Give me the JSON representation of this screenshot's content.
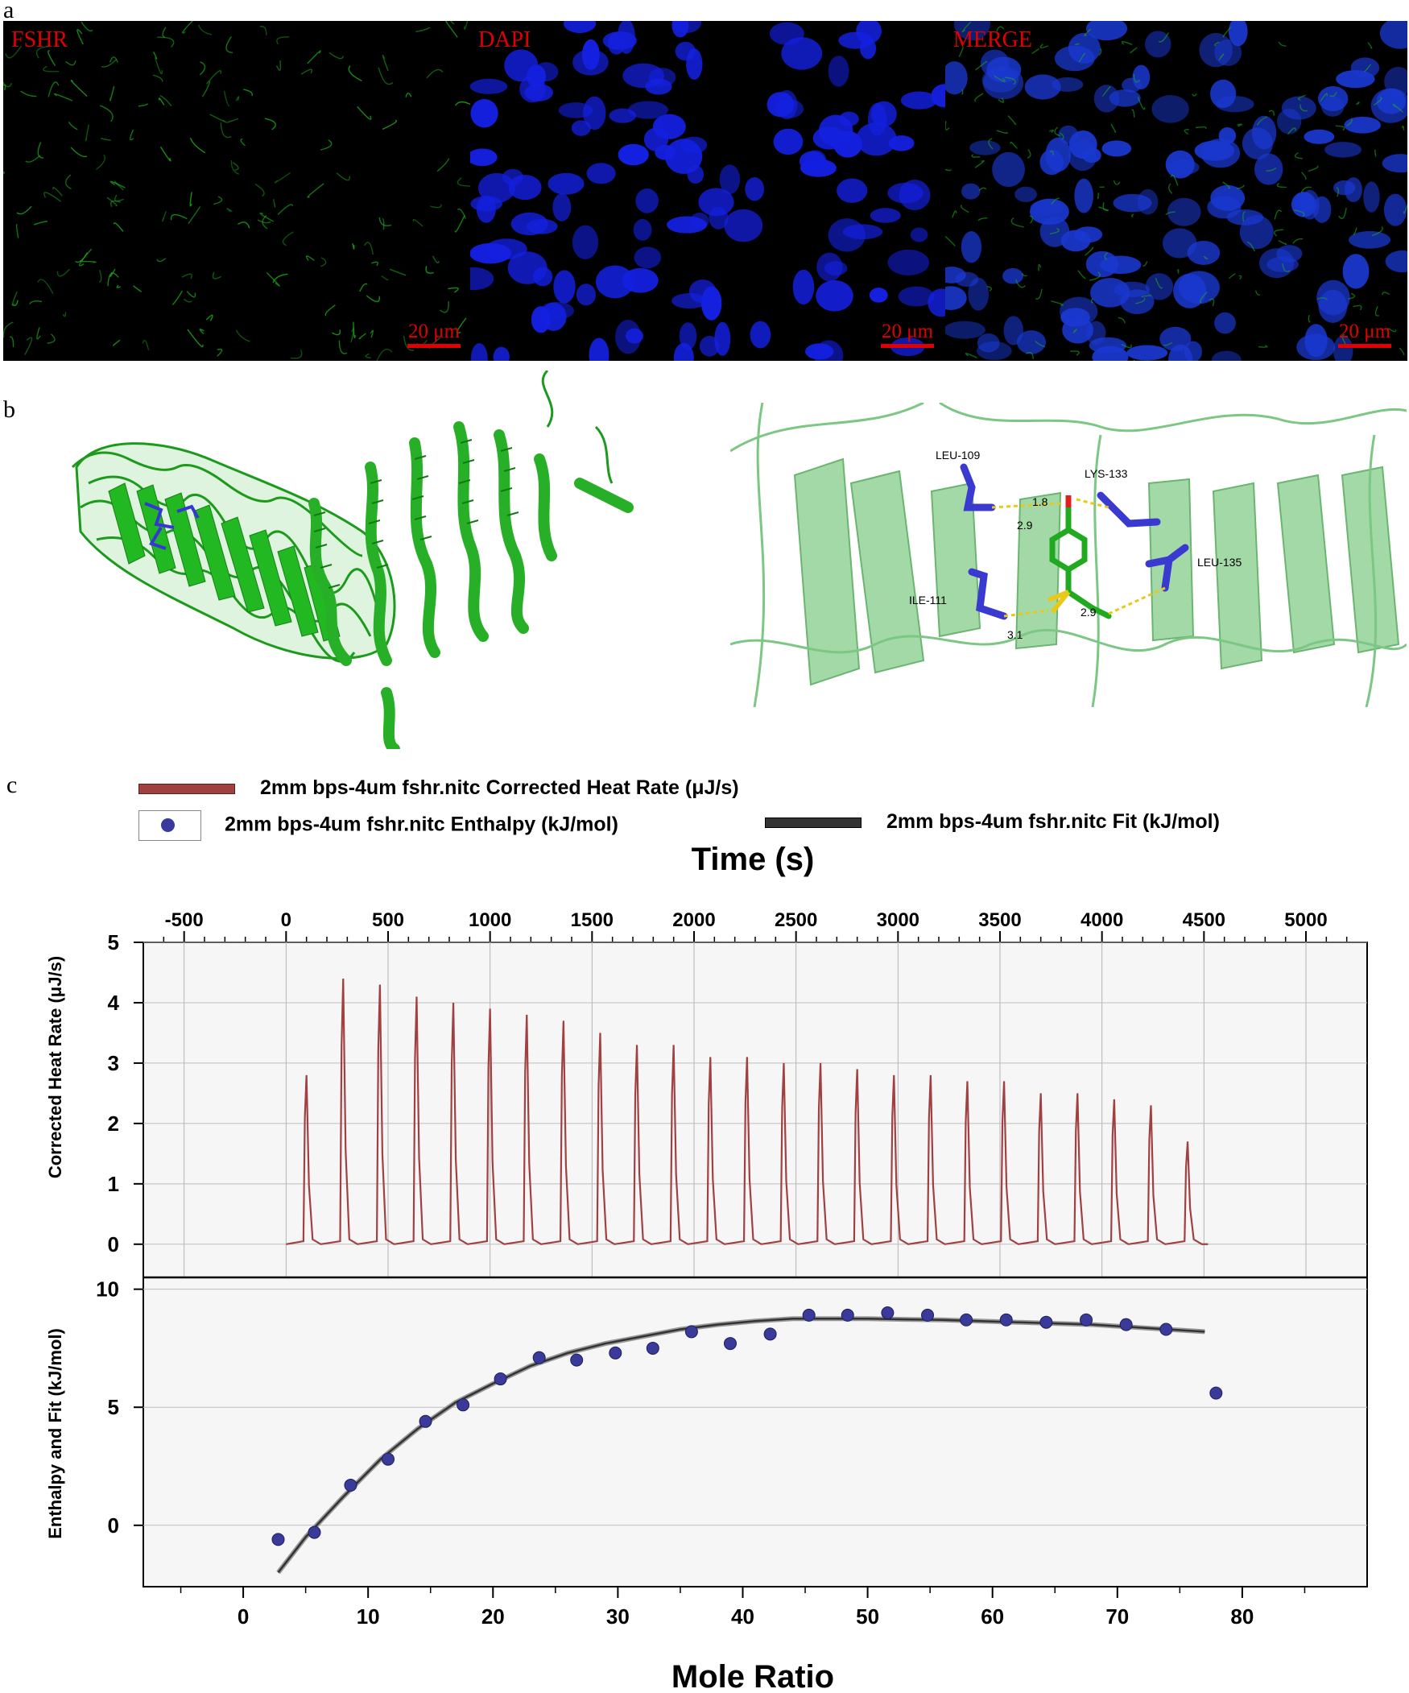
{
  "panels": {
    "a": {
      "letter": "a",
      "images": [
        {
          "label": "FSHR",
          "scale_bar": "20 μm",
          "stain_color": "#1ca81c"
        },
        {
          "label": "DAPI",
          "scale_bar": "20 μm",
          "stain_color": "#1420e0"
        },
        {
          "label": "MERGE",
          "scale_bar": "20 μm",
          "stain_color": "#1a38d0"
        }
      ]
    },
    "b": {
      "letter": "b",
      "residues": [
        {
          "name": "LEU-109"
        },
        {
          "name": "LYS-133"
        },
        {
          "name": "LEU-135"
        },
        {
          "name": "ILE-111"
        }
      ],
      "distances": [
        "1.8",
        "2.9",
        "2.9",
        "3.1"
      ],
      "colors": {
        "ribbon": "#20b020",
        "ribbon_light": "#7fcf85",
        "residue": "#3a3ad0",
        "ligand": "#1faa1f",
        "hbond": "#e8c81a"
      }
    },
    "c": {
      "letter": "c"
    }
  },
  "chart_data": [
    {
      "type": "line",
      "title": "",
      "top_axis_label": "Time (s)",
      "xlim": [
        -700,
        5300
      ],
      "xticks": [
        -500,
        0,
        500,
        1000,
        1500,
        2000,
        2500,
        3000,
        3500,
        4000,
        4500,
        5000
      ],
      "ylabel": "Corrected Heat Rate (μJ/s)",
      "ylim": [
        -0.55,
        5.0
      ],
      "yticks": [
        0,
        1,
        2,
        3,
        4,
        5
      ],
      "grid": true,
      "series": [
        {
          "name": "2mm bps-4um fshr.nitc Corrected Heat Rate (μJ/s)",
          "color": "#a04040",
          "injection_times": [
            90,
            270,
            450,
            630,
            810,
            990,
            1170,
            1350,
            1530,
            1710,
            1890,
            2070,
            2250,
            2430,
            2610,
            2790,
            2970,
            3150,
            3330,
            3510,
            3690,
            3870,
            4050,
            4230,
            4410
          ],
          "peak_heights": [
            2.8,
            4.4,
            4.3,
            4.1,
            4.0,
            3.9,
            3.8,
            3.7,
            3.5,
            3.3,
            3.3,
            3.1,
            3.1,
            3.0,
            3.0,
            2.9,
            2.8,
            2.8,
            2.7,
            2.7,
            2.5,
            2.5,
            2.4,
            2.3,
            1.7
          ],
          "baseline": 0,
          "end_time": 4520
        }
      ]
    },
    {
      "type": "scatter",
      "title": "",
      "xlabel": "Mole Ratio",
      "xlim": [
        -8,
        90
      ],
      "xticks": [
        0,
        10,
        20,
        30,
        40,
        50,
        60,
        70,
        80
      ],
      "ylabel": "Enthalpy and Fit (kJ/mol)",
      "ylim": [
        -2.6,
        10.5
      ],
      "yticks": [
        0,
        5,
        10
      ],
      "grid": true,
      "series": [
        {
          "name": "2mm bps-4um fshr.nitc Enthalpy (kJ/mol)",
          "color": "#3a3a9a",
          "x": [
            2.8,
            5.7,
            8.6,
            11.6,
            14.6,
            17.6,
            20.6,
            23.7,
            26.7,
            29.8,
            32.8,
            35.9,
            39.0,
            42.2,
            45.3,
            48.4,
            51.6,
            54.8,
            57.9,
            61.1,
            64.3,
            67.5,
            70.7,
            73.9,
            77.9
          ],
          "y": [
            -0.6,
            -0.3,
            1.7,
            2.8,
            4.4,
            5.1,
            6.2,
            7.1,
            7.0,
            7.3,
            7.5,
            8.2,
            7.7,
            8.1,
            8.9,
            8.9,
            9.0,
            8.9,
            8.7,
            8.7,
            8.6,
            8.7,
            8.5,
            8.3,
            5.6
          ]
        },
        {
          "name": "2mm bps-4um fshr.nitc Fit (kJ/mol)",
          "color": "#333333",
          "x": [
            2.8,
            5,
            8,
            11,
            14,
            17,
            20,
            23,
            26,
            29,
            32,
            35,
            38,
            41,
            44,
            47,
            50,
            53,
            56,
            59,
            62,
            65,
            68,
            71,
            74,
            77
          ],
          "y": [
            -2.0,
            -0.5,
            1.2,
            2.8,
            4.1,
            5.2,
            6.0,
            6.75,
            7.3,
            7.7,
            8.0,
            8.3,
            8.5,
            8.65,
            8.75,
            8.75,
            8.75,
            8.72,
            8.7,
            8.65,
            8.6,
            8.55,
            8.5,
            8.4,
            8.3,
            8.2
          ]
        }
      ]
    }
  ]
}
